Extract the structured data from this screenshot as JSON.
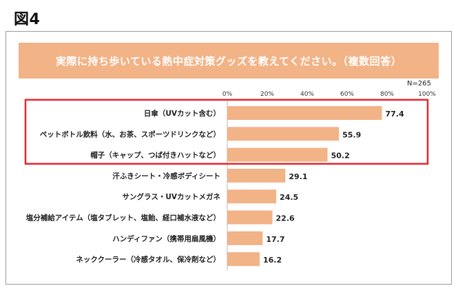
{
  "figure_label": "図4",
  "chart_data": {
    "type": "bar",
    "orientation": "horizontal",
    "title": "実際に持ち歩いている熱中症対策グッズを教えてください。（複数回答）",
    "sample_size": "N=265",
    "xlim": [
      0,
      100
    ],
    "x_ticks": [
      "0%",
      "20%",
      "40%",
      "60%",
      "80%",
      "100%"
    ],
    "categories": [
      "日傘（UVカット含む）",
      "ペットボトル飲料（水、お茶、スポーツドリンクなど）",
      "帽子（キャップ、つば付きハットなど）",
      "汗ふきシート・冷感ボディシート",
      "サングラス・UVカットメガネ",
      "塩分補給アイテム（塩タブレット、塩飴、経口補水液など）",
      "ハンディファン（携帯用扇風機）",
      "ネッククーラー（冷感タオル、保冷剤など）"
    ],
    "values": [
      77.4,
      55.9,
      50.2,
      29.1,
      24.5,
      22.6,
      17.7,
      16.2
    ],
    "value_labels": [
      "77.4",
      "55.9",
      "50.2",
      "29.1",
      "24.5",
      "22.6",
      "17.7",
      "16.2"
    ],
    "highlighted_count": 3,
    "colors": {
      "bar": "#f2b387",
      "banner": "#f2b387",
      "highlight_box": "#e8252c",
      "axis": "#b5b5b5"
    }
  }
}
